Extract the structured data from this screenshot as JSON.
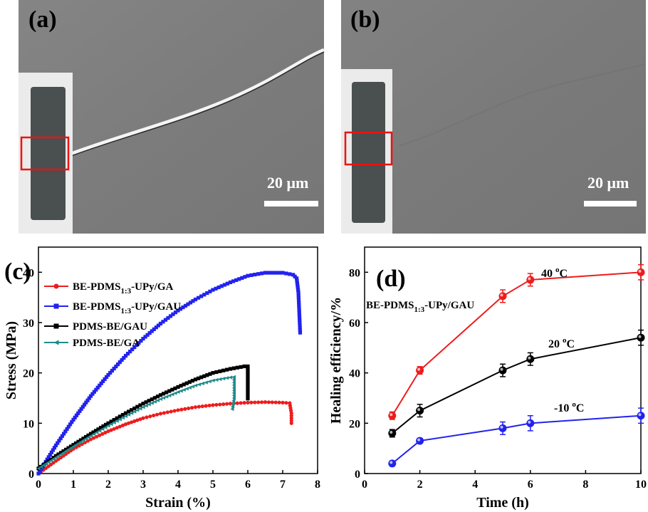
{
  "panels": {
    "a": {
      "label": "(a)",
      "scale_bar": "20 μm"
    },
    "b": {
      "label": "(b)",
      "scale_bar": "20 μm"
    }
  },
  "colors": {
    "red": "#ee1c1c",
    "blue": "#2222ee",
    "black": "#000000",
    "teal": "#1f8a8a"
  },
  "chart_data": [
    {
      "panel": "(c)",
      "type": "line",
      "xlabel": "Strain (%)",
      "ylabel": "Stress (MPa)",
      "xlim": [
        0,
        8
      ],
      "ylim": [
        0,
        45
      ],
      "xticks": [
        "0",
        "1",
        "2",
        "3",
        "4",
        "5",
        "6",
        "7",
        "8"
      ],
      "yticks": [
        "0",
        "10",
        "20",
        "30",
        "40"
      ],
      "legend_position": "top-left",
      "series": [
        {
          "name_main": "BE-PDMS",
          "name_sub": "1:3",
          "name_tail": "-UPy/GA",
          "color": "#ee1c1c",
          "marker": "circle",
          "x": [
            0,
            0.5,
            1,
            1.5,
            2,
            2.5,
            3,
            3.5,
            4,
            4.5,
            5,
            5.5,
            6,
            6.5,
            7,
            7.2,
            7.25,
            7.25
          ],
          "y": [
            0,
            2.5,
            4.9,
            6.8,
            8.4,
            9.8,
            11,
            11.9,
            12.6,
            13.2,
            13.6,
            13.9,
            14.1,
            14.2,
            14.1,
            14,
            12,
            10
          ]
        },
        {
          "name_main": "BE-PDMS",
          "name_sub": "1:3",
          "name_tail": "-UPy/GAU",
          "color": "#2222ee",
          "marker": "square",
          "x": [
            0,
            0.5,
            1,
            1.5,
            2,
            2.5,
            3,
            3.5,
            4,
            4.5,
            5,
            5.5,
            6,
            6.5,
            7,
            7.3,
            7.4,
            7.45,
            7.5
          ],
          "y": [
            0,
            5.6,
            10.7,
            15.4,
            19.6,
            23.4,
            26.8,
            29.8,
            32.4,
            34.6,
            36.5,
            38,
            39.3,
            39.9,
            39.9,
            39.5,
            38.8,
            36,
            28
          ]
        },
        {
          "name_main": "PDMS-BE/GAU",
          "name_sub": "",
          "name_tail": "",
          "color": "#000000",
          "marker": "square",
          "x": [
            0,
            0.5,
            1,
            1.5,
            2,
            2.5,
            3,
            3.5,
            4,
            4.5,
            5,
            5.5,
            5.9,
            6,
            6,
            6,
            6
          ],
          "y": [
            1,
            3.5,
            5.7,
            7.9,
            10,
            12,
            13.9,
            15.6,
            17.2,
            18.7,
            20,
            20.8,
            21.3,
            21.3,
            19,
            17,
            14.9
          ]
        },
        {
          "name_main": "PDMS-BE/GA",
          "name_sub": "",
          "name_tail": "",
          "color": "#1f8a8a",
          "marker": "triangle-left",
          "x": [
            0,
            0.5,
            1,
            1.5,
            2,
            2.5,
            3,
            3.5,
            4,
            4.5,
            5,
            5.4,
            5.6,
            5.6,
            5.6,
            5.55
          ],
          "y": [
            1,
            3.2,
            5.4,
            7.5,
            9.5,
            11.4,
            13.2,
            14.8,
            16.2,
            17.5,
            18.5,
            19,
            19.2,
            17,
            15,
            12.8
          ]
        }
      ]
    },
    {
      "panel": "(d)",
      "type": "line",
      "xlabel": "Time (h)",
      "ylabel": "Healing efficiency/%",
      "xlim": [
        0,
        10
      ],
      "ylim": [
        0,
        90
      ],
      "xticks": [
        "0",
        "2",
        "4",
        "6",
        "8",
        "10"
      ],
      "yticks": [
        "0",
        "20",
        "40",
        "60",
        "80"
      ],
      "inset_label_main": "BE-PDMS",
      "inset_label_sub": "1:3",
      "inset_label_tail": "-UPy/GAU",
      "series": [
        {
          "name_main": "40 ",
          "name_sup": "o",
          "name_tail": "C",
          "color": "#ee1c1c",
          "x": [
            1,
            2,
            5,
            6,
            10
          ],
          "y": [
            23,
            41,
            70.5,
            77,
            80
          ],
          "err": [
            1.5,
            1.5,
            2.5,
            2.5,
            3
          ]
        },
        {
          "name_main": "20 ",
          "name_sup": "o",
          "name_tail": "C",
          "color": "#000000",
          "x": [
            1,
            2,
            5,
            6,
            10
          ],
          "y": [
            16,
            25,
            41,
            45.5,
            54
          ],
          "err": [
            1.5,
            2.5,
            2.5,
            2.5,
            3
          ]
        },
        {
          "name_main": "-10 ",
          "name_sup": "o",
          "name_tail": "C",
          "color": "#2222ee",
          "x": [
            1,
            2,
            5,
            6,
            10
          ],
          "y": [
            4,
            13,
            18,
            20,
            23
          ],
          "err": [
            1,
            1,
            2.5,
            3,
            3
          ]
        }
      ]
    }
  ]
}
